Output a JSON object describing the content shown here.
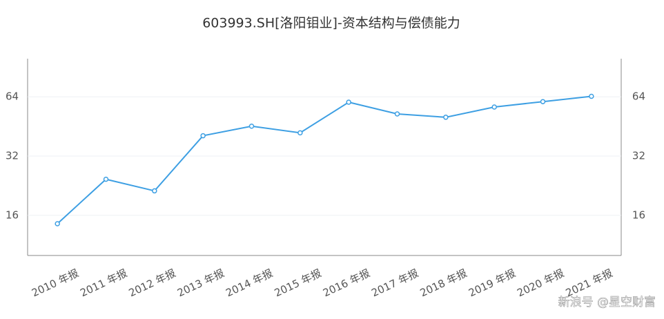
{
  "chart_data": {
    "type": "line",
    "title": "603993.SH[洛阳钼业]-资本结构与偿债能力",
    "categories": [
      "2010 年报",
      "2011 年报",
      "2012 年报",
      "2013 年报",
      "2014 年报",
      "2015 年报",
      "2016 年报",
      "2017 年报",
      "2018 年报",
      "2019 年报",
      "2020 年报",
      "2021 年报"
    ],
    "series": [
      {
        "color": "#3d9fe3",
        "values": [
          14.5,
          24.4,
          21.3,
          40.6,
          45.4,
          42.0,
          60.1,
          52.4,
          50.4,
          56.8,
          60.5,
          64.4
        ]
      }
    ],
    "ylim": [
      10,
      100
    ],
    "yticks": [
      16,
      32,
      64
    ],
    "y2lim": [
      10,
      100
    ],
    "y2ticks": [
      16,
      32,
      64
    ],
    "log_scale": true,
    "grid": true
  },
  "watermark": "新浪号 @星空财富"
}
